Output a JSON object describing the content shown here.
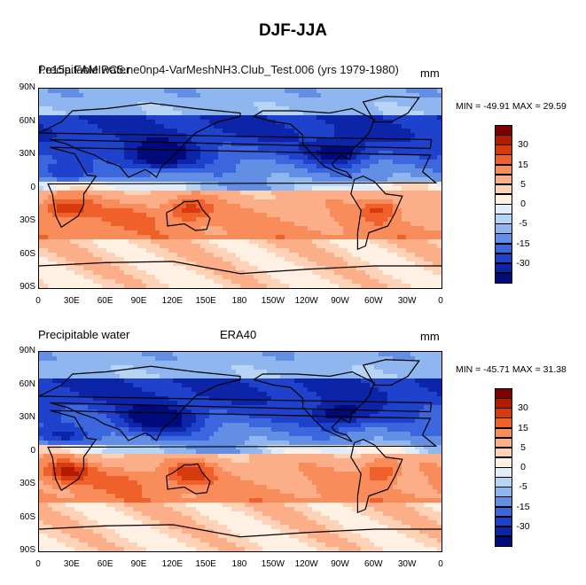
{
  "figure": {
    "title": "DJF-JJA"
  },
  "panels": [
    {
      "id": "top",
      "left_label": "Precipitable water",
      "center_label": "f.e15a.FAMIPC5.ne0np4-VarMeshNH3.Club_Test.006 (yrs 1979-1980)",
      "units": "mm",
      "stats": "MIN = -49.91 MAX =  29.59"
    },
    {
      "id": "bottom",
      "left_label": "Precipitable water",
      "center_label": "ERA40",
      "units": "mm",
      "stats": "MIN = -45.71 MAX = 31.38"
    }
  ],
  "lat_ticks": [
    "90N",
    "60N",
    "30N",
    "0",
    "30S",
    "60S",
    "90S"
  ],
  "lon_ticks": [
    "0",
    "30E",
    "60E",
    "90E",
    "120E",
    "150E",
    "180",
    "150W",
    "120W",
    "90W",
    "60W",
    "30W",
    "0"
  ],
  "colorbar": {
    "labels": [
      "30",
      "15",
      "5",
      "0",
      "-5",
      "-15",
      "-30"
    ],
    "colors": [
      "#7f0000",
      "#b31b00",
      "#d83a10",
      "#f0602b",
      "#f98c5b",
      "#fcae88",
      "#fdd2b6",
      "#fff0e4",
      "#e0ecf8",
      "#b8d4f4",
      "#8fb6ee",
      "#628ee4",
      "#3c66dd",
      "#1e42cc",
      "#0c24a8",
      "#000a7a"
    ]
  }
}
